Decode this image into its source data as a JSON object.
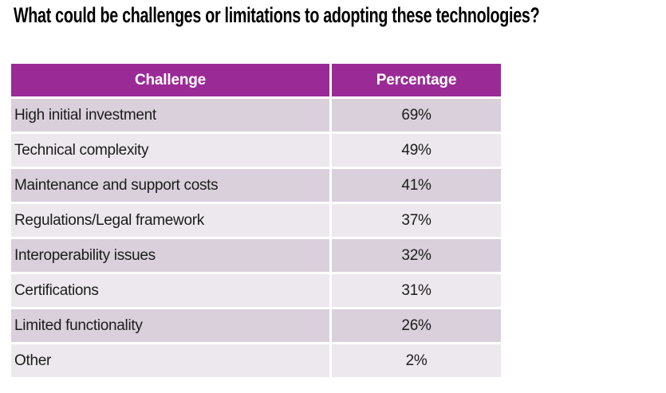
{
  "title": "What could be challenges or limitations to adopting these technologies?",
  "colors": {
    "header_bg": "#9A2B96",
    "header_text": "#FFFFFF",
    "row_dark": "#DAD0DC",
    "row_light": "#EDE8EE",
    "body_text": "#1C1C1C",
    "title_text": "#000000",
    "background": "#FFFFFF"
  },
  "table": {
    "headers": [
      "Challenge",
      "Percentage"
    ],
    "rows": [
      {
        "challenge": "High initial investment",
        "percentage": "69%"
      },
      {
        "challenge": "Technical complexity",
        "percentage": "49%"
      },
      {
        "challenge": "Maintenance and support costs",
        "percentage": "41%"
      },
      {
        "challenge": "Regulations/Legal framework",
        "percentage": "37%"
      },
      {
        "challenge": "Interoperability issues",
        "percentage": "32%"
      },
      {
        "challenge": "Certifications",
        "percentage": "31%"
      },
      {
        "challenge": "Limited functionality",
        "percentage": "26%"
      },
      {
        "challenge": "Other",
        "percentage": "2%"
      }
    ]
  },
  "chart_data": {
    "type": "table",
    "title": "What could be challenges or limitations to adopting these technologies?",
    "columns": [
      "Challenge",
      "Percentage"
    ],
    "categories": [
      "High initial investment",
      "Technical complexity",
      "Maintenance and support costs",
      "Regulations/Legal framework",
      "Interoperability issues",
      "Certifications",
      "Limited functionality",
      "Other"
    ],
    "values": [
      69,
      49,
      41,
      37,
      32,
      31,
      26,
      2
    ],
    "value_unit": "percent",
    "legend_position": "none",
    "grid": false
  }
}
